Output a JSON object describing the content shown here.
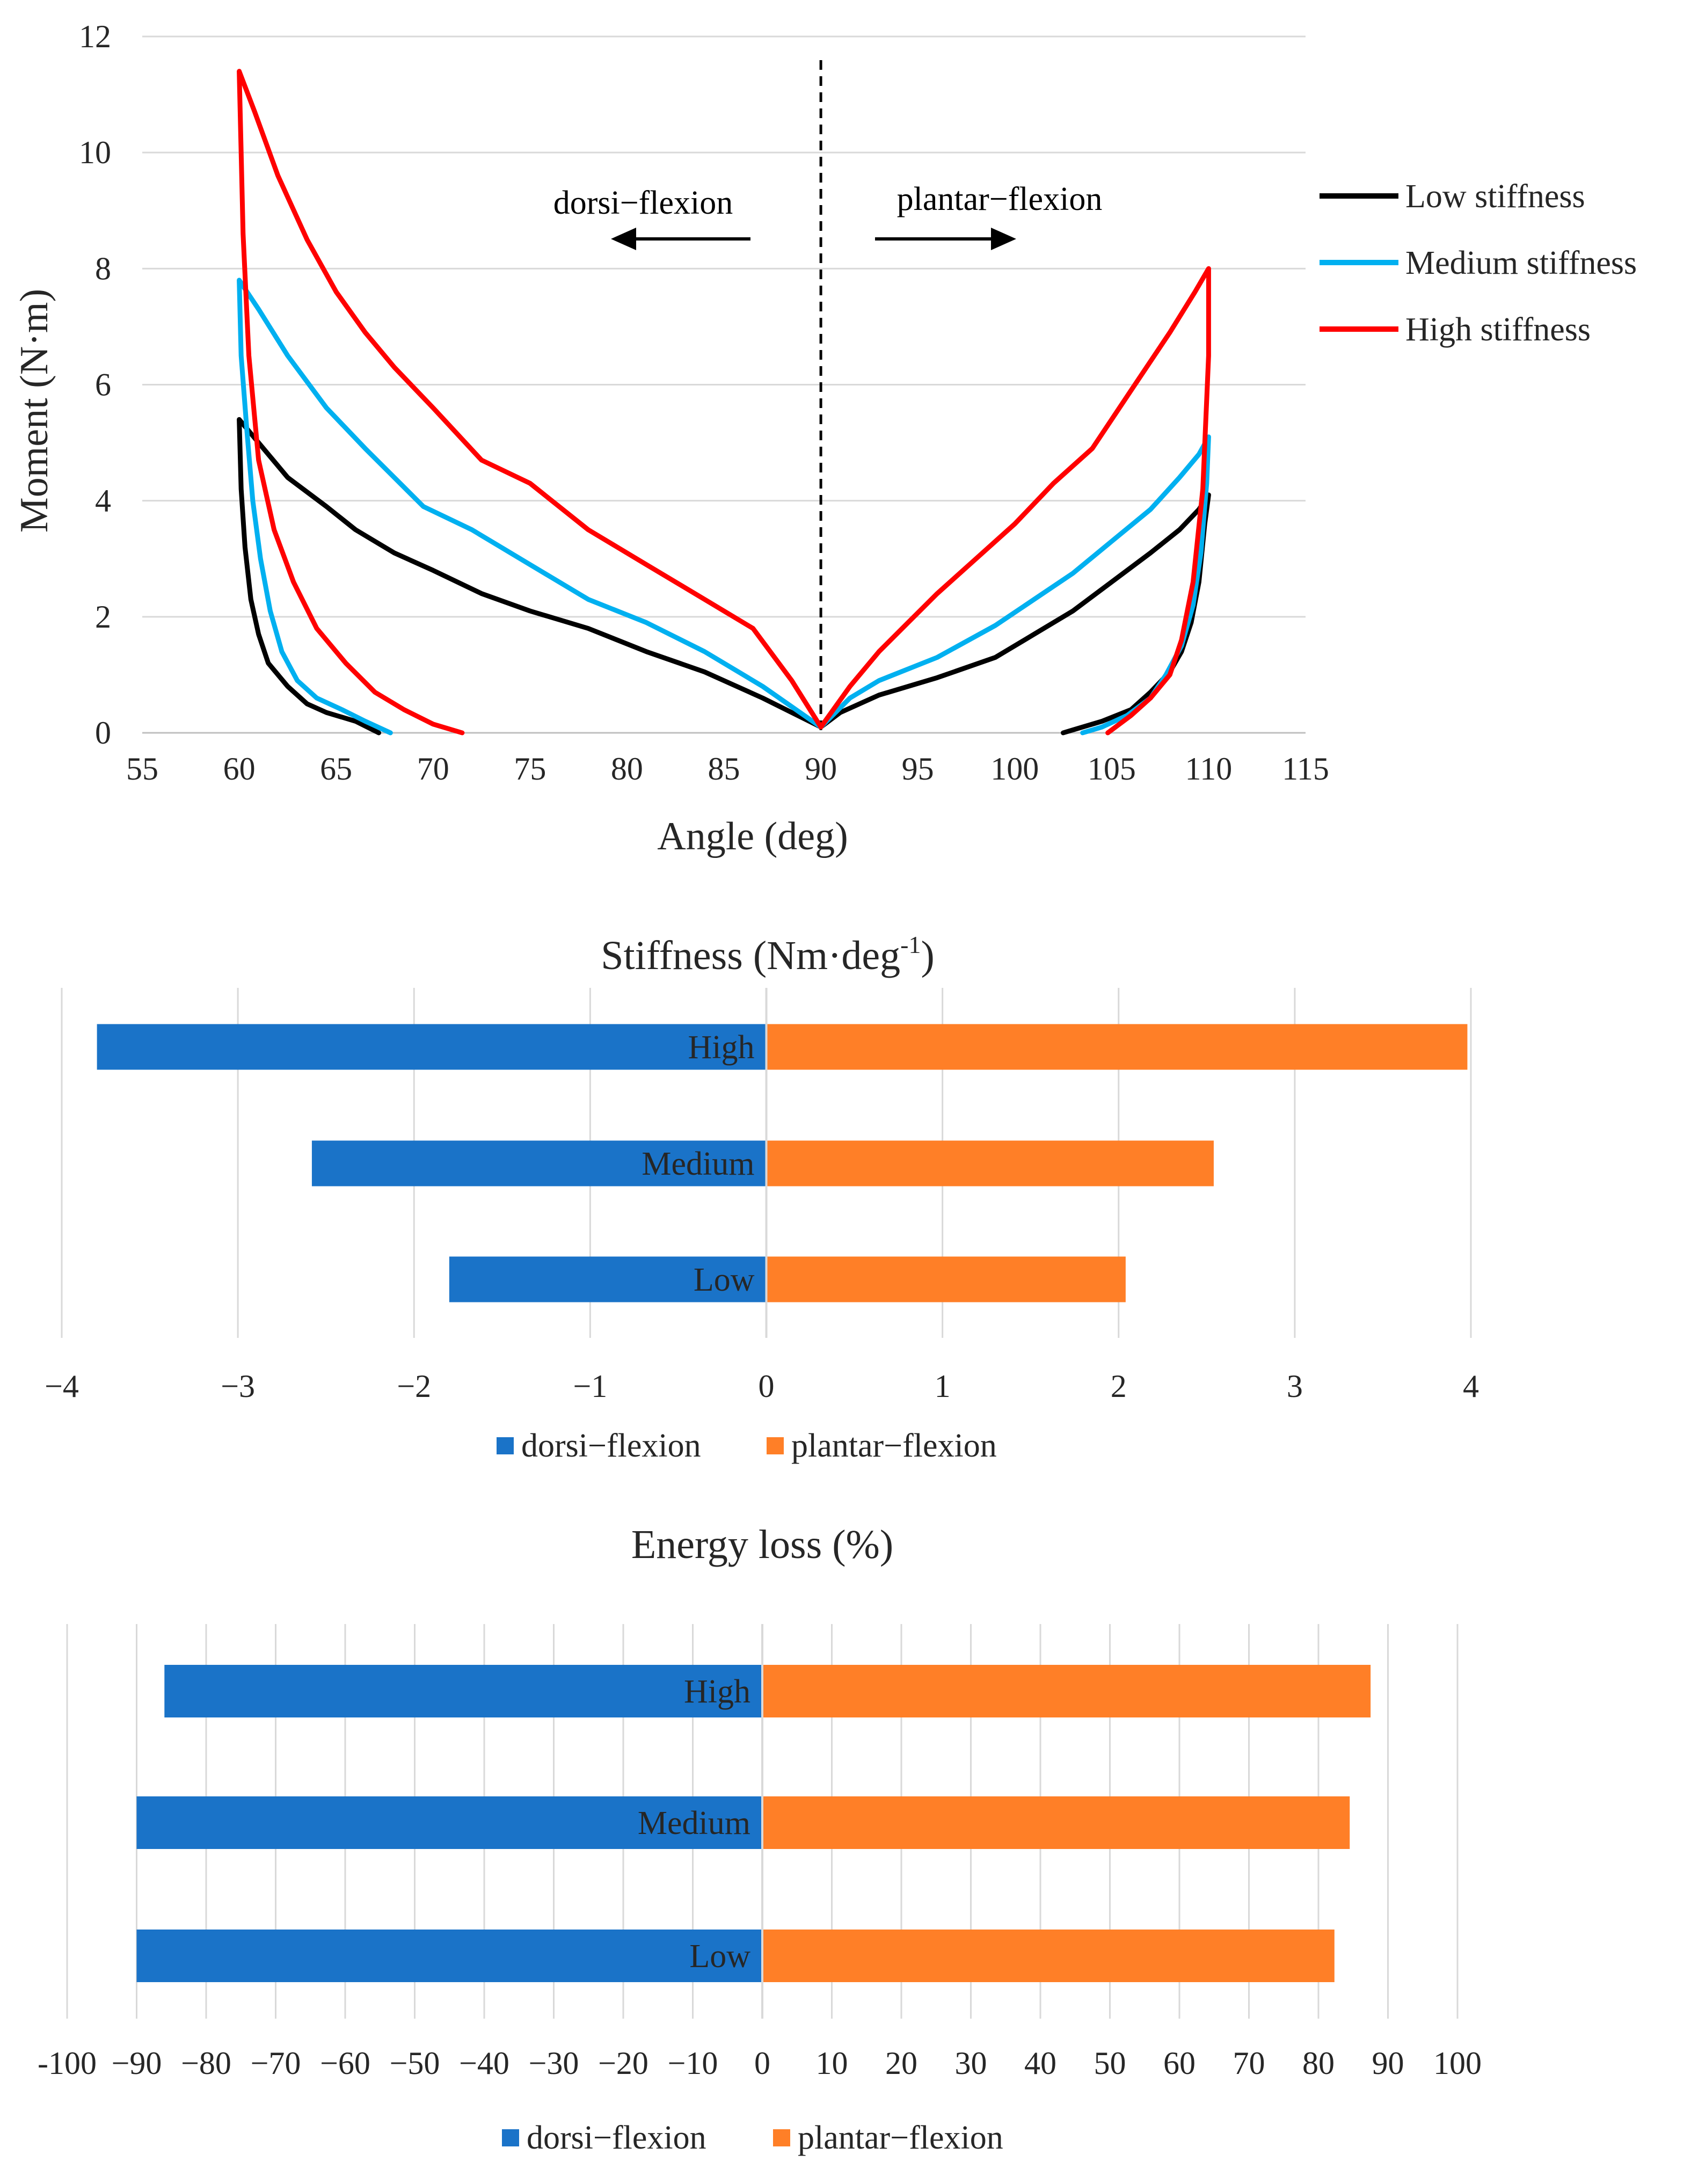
{
  "chart_data": [
    {
      "type": "line",
      "title": "",
      "xlabel": "Angle (deg)",
      "ylabel": "Moment (N·m)",
      "xlim": [
        55,
        115
      ],
      "ylim": [
        0,
        12
      ],
      "x_ticks": [
        "55",
        "60",
        "65",
        "70",
        "75",
        "80",
        "85",
        "90",
        "95",
        "100",
        "105",
        "110",
        "115"
      ],
      "y_ticks": [
        "0",
        "2",
        "4",
        "6",
        "8",
        "10",
        "12"
      ],
      "divider_angle": 90,
      "annotations": {
        "left": "dorsi−flexion",
        "right": "plantar−flexion"
      },
      "legend_position": "right",
      "series": [
        {
          "name": "Low stiffness",
          "color": "#000000",
          "points": [
            [
              67.2,
              0
            ],
            [
              66,
              0.2
            ],
            [
              64.5,
              0.35
            ],
            [
              63.5,
              0.5
            ],
            [
              62.5,
              0.8
            ],
            [
              61.5,
              1.2
            ],
            [
              61,
              1.7
            ],
            [
              60.6,
              2.3
            ],
            [
              60.3,
              3.2
            ],
            [
              60.1,
              4.2
            ],
            [
              60,
              5.4
            ],
            [
              61,
              5.0
            ],
            [
              62.5,
              4.4
            ],
            [
              64.5,
              3.9
            ],
            [
              66,
              3.5
            ],
            [
              68,
              3.1
            ],
            [
              70,
              2.8
            ],
            [
              72.5,
              2.4
            ],
            [
              75,
              2.1
            ],
            [
              78,
              1.8
            ],
            [
              81,
              1.4
            ],
            [
              84,
              1.05
            ],
            [
              87,
              0.6
            ],
            [
              90,
              0.1
            ],
            [
              91,
              0.35
            ],
            [
              93,
              0.65
            ],
            [
              96,
              0.95
            ],
            [
              99,
              1.3
            ],
            [
              101,
              1.7
            ],
            [
              103,
              2.1
            ],
            [
              105,
              2.6
            ],
            [
              107,
              3.1
            ],
            [
              108.5,
              3.5
            ],
            [
              109.5,
              3.85
            ],
            [
              110,
              4.1
            ],
            [
              109.8,
              3.6
            ],
            [
              109.5,
              2.6
            ],
            [
              109.1,
              1.9
            ],
            [
              108.6,
              1.4
            ],
            [
              108,
              1.05
            ],
            [
              107,
              0.7
            ],
            [
              106,
              0.4
            ],
            [
              104.5,
              0.2
            ],
            [
              103,
              0.05
            ],
            [
              102.5,
              0
            ]
          ]
        },
        {
          "name": "Medium stiffness",
          "color": "#00b0f0",
          "points": [
            [
              67.8,
              0
            ],
            [
              66.5,
              0.2
            ],
            [
              65.3,
              0.4
            ],
            [
              64,
              0.6
            ],
            [
              63,
              0.9
            ],
            [
              62.2,
              1.4
            ],
            [
              61.6,
              2.1
            ],
            [
              61.1,
              3.0
            ],
            [
              60.7,
              4.0
            ],
            [
              60.4,
              5.2
            ],
            [
              60.1,
              6.5
            ],
            [
              60,
              7.8
            ],
            [
              61,
              7.3
            ],
            [
              62.5,
              6.5
            ],
            [
              64.5,
              5.6
            ],
            [
              66.5,
              4.9
            ],
            [
              68,
              4.4
            ],
            [
              69.5,
              3.9
            ],
            [
              72,
              3.5
            ],
            [
              75,
              2.9
            ],
            [
              78,
              2.3
            ],
            [
              81,
              1.9
            ],
            [
              84,
              1.4
            ],
            [
              87,
              0.8
            ],
            [
              90,
              0.1
            ],
            [
              91.5,
              0.6
            ],
            [
              93,
              0.9
            ],
            [
              96,
              1.3
            ],
            [
              99,
              1.85
            ],
            [
              101,
              2.3
            ],
            [
              103,
              2.75
            ],
            [
              105,
              3.3
            ],
            [
              107,
              3.85
            ],
            [
              108.5,
              4.4
            ],
            [
              109.5,
              4.8
            ],
            [
              110,
              5.1
            ],
            [
              109.9,
              4.3
            ],
            [
              109.6,
              3.1
            ],
            [
              109.2,
              2.2
            ],
            [
              108.6,
              1.5
            ],
            [
              107.8,
              1.0
            ],
            [
              107,
              0.6
            ],
            [
              105.8,
              0.3
            ],
            [
              104.5,
              0.1
            ],
            [
              103.5,
              0
            ]
          ]
        },
        {
          "name": "High stiffness",
          "color": "#ff0000",
          "points": [
            [
              71.5,
              0
            ],
            [
              70,
              0.15
            ],
            [
              68.5,
              0.4
            ],
            [
              67,
              0.7
            ],
            [
              65.5,
              1.2
            ],
            [
              64,
              1.8
            ],
            [
              62.8,
              2.6
            ],
            [
              61.8,
              3.5
            ],
            [
              61,
              4.7
            ],
            [
              60.5,
              6.5
            ],
            [
              60.2,
              8.6
            ],
            [
              60,
              11.4
            ],
            [
              60.8,
              10.7
            ],
            [
              62,
              9.6
            ],
            [
              63.5,
              8.5
            ],
            [
              65,
              7.6
            ],
            [
              66.5,
              6.9
            ],
            [
              68,
              6.3
            ],
            [
              70,
              5.6
            ],
            [
              72.5,
              4.7
            ],
            [
              75,
              4.3
            ],
            [
              78,
              3.5
            ],
            [
              81,
              2.9
            ],
            [
              84,
              2.3
            ],
            [
              86.5,
              1.8
            ],
            [
              88.5,
              0.9
            ],
            [
              90,
              0.1
            ],
            [
              91.5,
              0.8
            ],
            [
              93,
              1.4
            ],
            [
              94.5,
              1.9
            ],
            [
              96,
              2.4
            ],
            [
              98,
              3.0
            ],
            [
              100,
              3.6
            ],
            [
              102,
              4.3
            ],
            [
              104,
              4.9
            ],
            [
              106,
              5.9
            ],
            [
              108,
              6.9
            ],
            [
              109.3,
              7.6
            ],
            [
              110,
              8.0
            ],
            [
              110,
              6.5
            ],
            [
              109.7,
              4.2
            ],
            [
              109.2,
              2.6
            ],
            [
              108.6,
              1.6
            ],
            [
              108,
              1.0
            ],
            [
              107,
              0.6
            ],
            [
              106,
              0.3
            ],
            [
              105.2,
              0.1
            ],
            [
              104.8,
              0
            ]
          ]
        }
      ]
    },
    {
      "type": "bar",
      "orientation": "horizontal",
      "title_main": "Stiffness (Nm·deg",
      "title_sup": "-1",
      "title_end": ")",
      "categories": [
        "High",
        "Medium",
        "Low"
      ],
      "xlim": [
        -4,
        4
      ],
      "x_ticks": [
        "−4",
        "−3",
        "−2",
        "−1",
        "0",
        "1",
        "2",
        "3",
        "4"
      ],
      "legend_position": "bottom",
      "series": [
        {
          "name": "dorsi−flexion",
          "color": "#1a73c8",
          "values": [
            -3.8,
            -2.58,
            -1.8
          ]
        },
        {
          "name": "plantar−flexion",
          "color": "#ff7f27",
          "values": [
            3.98,
            2.54,
            2.04
          ]
        }
      ]
    },
    {
      "type": "bar",
      "orientation": "horizontal",
      "title": "Energy loss (%)",
      "categories": [
        "High",
        "Medium",
        "Low"
      ],
      "xlim": [
        -100,
        100
      ],
      "x_ticks": [
        "-100",
        "−90",
        "−80",
        "−70",
        "−60",
        "−50",
        "−40",
        "−30",
        "−20",
        "−10",
        "0",
        "10",
        "20",
        "30",
        "40",
        "50",
        "60",
        "70",
        "80",
        "90",
        "100"
      ],
      "legend_position": "bottom",
      "series": [
        {
          "name": "dorsi−flexion",
          "color": "#1a73c8",
          "values": [
            -86,
            -90,
            -90
          ]
        },
        {
          "name": "plantar−flexion",
          "color": "#ff7f27",
          "values": [
            87.5,
            84.5,
            82.3
          ]
        }
      ]
    }
  ]
}
